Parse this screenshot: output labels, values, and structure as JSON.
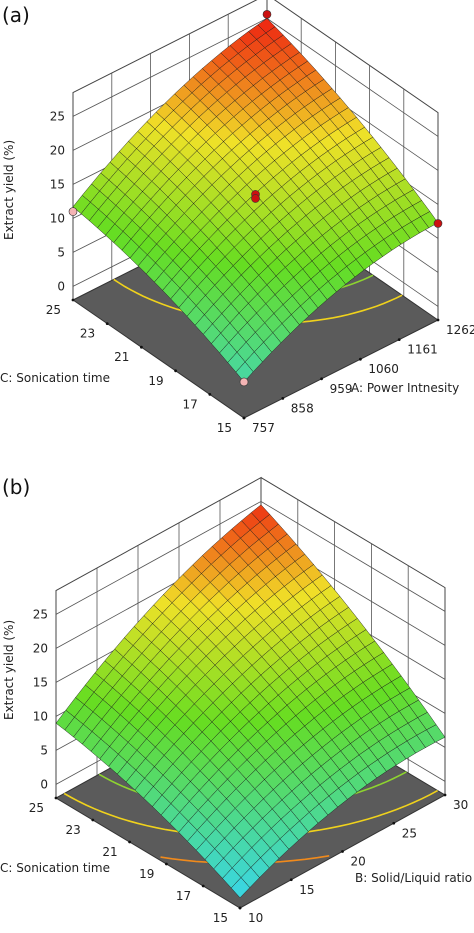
{
  "chart_data": [
    {
      "type": "surface3d",
      "panel_label": "(a)",
      "x_axis": {
        "label": "A: Power Intnesity",
        "ticks": [
          "757",
          "858",
          "959",
          "1060",
          "1161",
          "1262"
        ],
        "range": [
          757,
          1262
        ]
      },
      "y_axis": {
        "label": "C: Sonication time",
        "ticks": [
          "15",
          "17",
          "19",
          "21",
          "23",
          "25"
        ],
        "range": [
          15,
          25
        ]
      },
      "z_axis": {
        "label": "Extract yield (%)",
        "ticks": [
          "0",
          "5",
          "10",
          "15",
          "20",
          "25"
        ],
        "range": [
          0,
          25
        ]
      },
      "surface_corners": {
        "x_low_y_low": 3.3,
        "x_high_y_low": 12.3,
        "x_low_y_high": 11.7,
        "x_high_y_high": 25.0
      },
      "design_points": [
        {
          "x": 757,
          "y": 25,
          "z": 11.0,
          "color": "#f4b4b4"
        },
        {
          "x": 1262,
          "y": 15,
          "z": 12.2,
          "color": "#cc1111"
        },
        {
          "x": 1262,
          "y": 25,
          "z": 25.6,
          "color": "#cc1111"
        },
        {
          "x": 1009.5,
          "y": 20,
          "z": 15.0,
          "color": "#cc1111"
        },
        {
          "x": 1009.5,
          "y": 20,
          "z": 14.4,
          "color": "#cc1111"
        },
        {
          "x": 757,
          "y": 15,
          "z": 3.3,
          "color": "#f4b4b4"
        }
      ],
      "contour_colors": [
        "#3ecf3e",
        "#2fcf44",
        "#8ed42f",
        "#f0d21c"
      ],
      "colors": {
        "floor": "#5b5b5b",
        "low": "#3ad6e0",
        "mid": "#66dd22",
        "high": "#ee2211"
      }
    },
    {
      "type": "surface3d",
      "panel_label": "(b)",
      "x_axis": {
        "label": "B: Solid/Liquid ratio",
        "ticks": [
          "10",
          "15",
          "20",
          "25",
          "30"
        ],
        "range": [
          10,
          30
        ]
      },
      "y_axis": {
        "label": "C: Sonication time",
        "ticks": [
          "15",
          "17",
          "19",
          "21",
          "23",
          "25"
        ],
        "range": [
          15,
          25
        ]
      },
      "z_axis": {
        "label": "Extract yield (%)",
        "ticks": [
          "0",
          "5",
          "10",
          "15",
          "20",
          "25"
        ],
        "range": [
          0,
          25
        ]
      },
      "surface_corners": {
        "x_low_y_low": -0.5,
        "x_high_y_low": 6.5,
        "x_low_y_high": 9.0,
        "x_high_y_high": 24.5
      },
      "design_points": [],
      "contour_colors": [
        "#30c8c8",
        "#3ecf3e",
        "#2fcf44",
        "#8ed42f",
        "#f0d21c",
        "#f08a1c"
      ],
      "colors": {
        "floor": "#5b5b5b",
        "low": "#3ad6e0",
        "mid": "#66dd22",
        "high": "#ee2211"
      }
    }
  ]
}
